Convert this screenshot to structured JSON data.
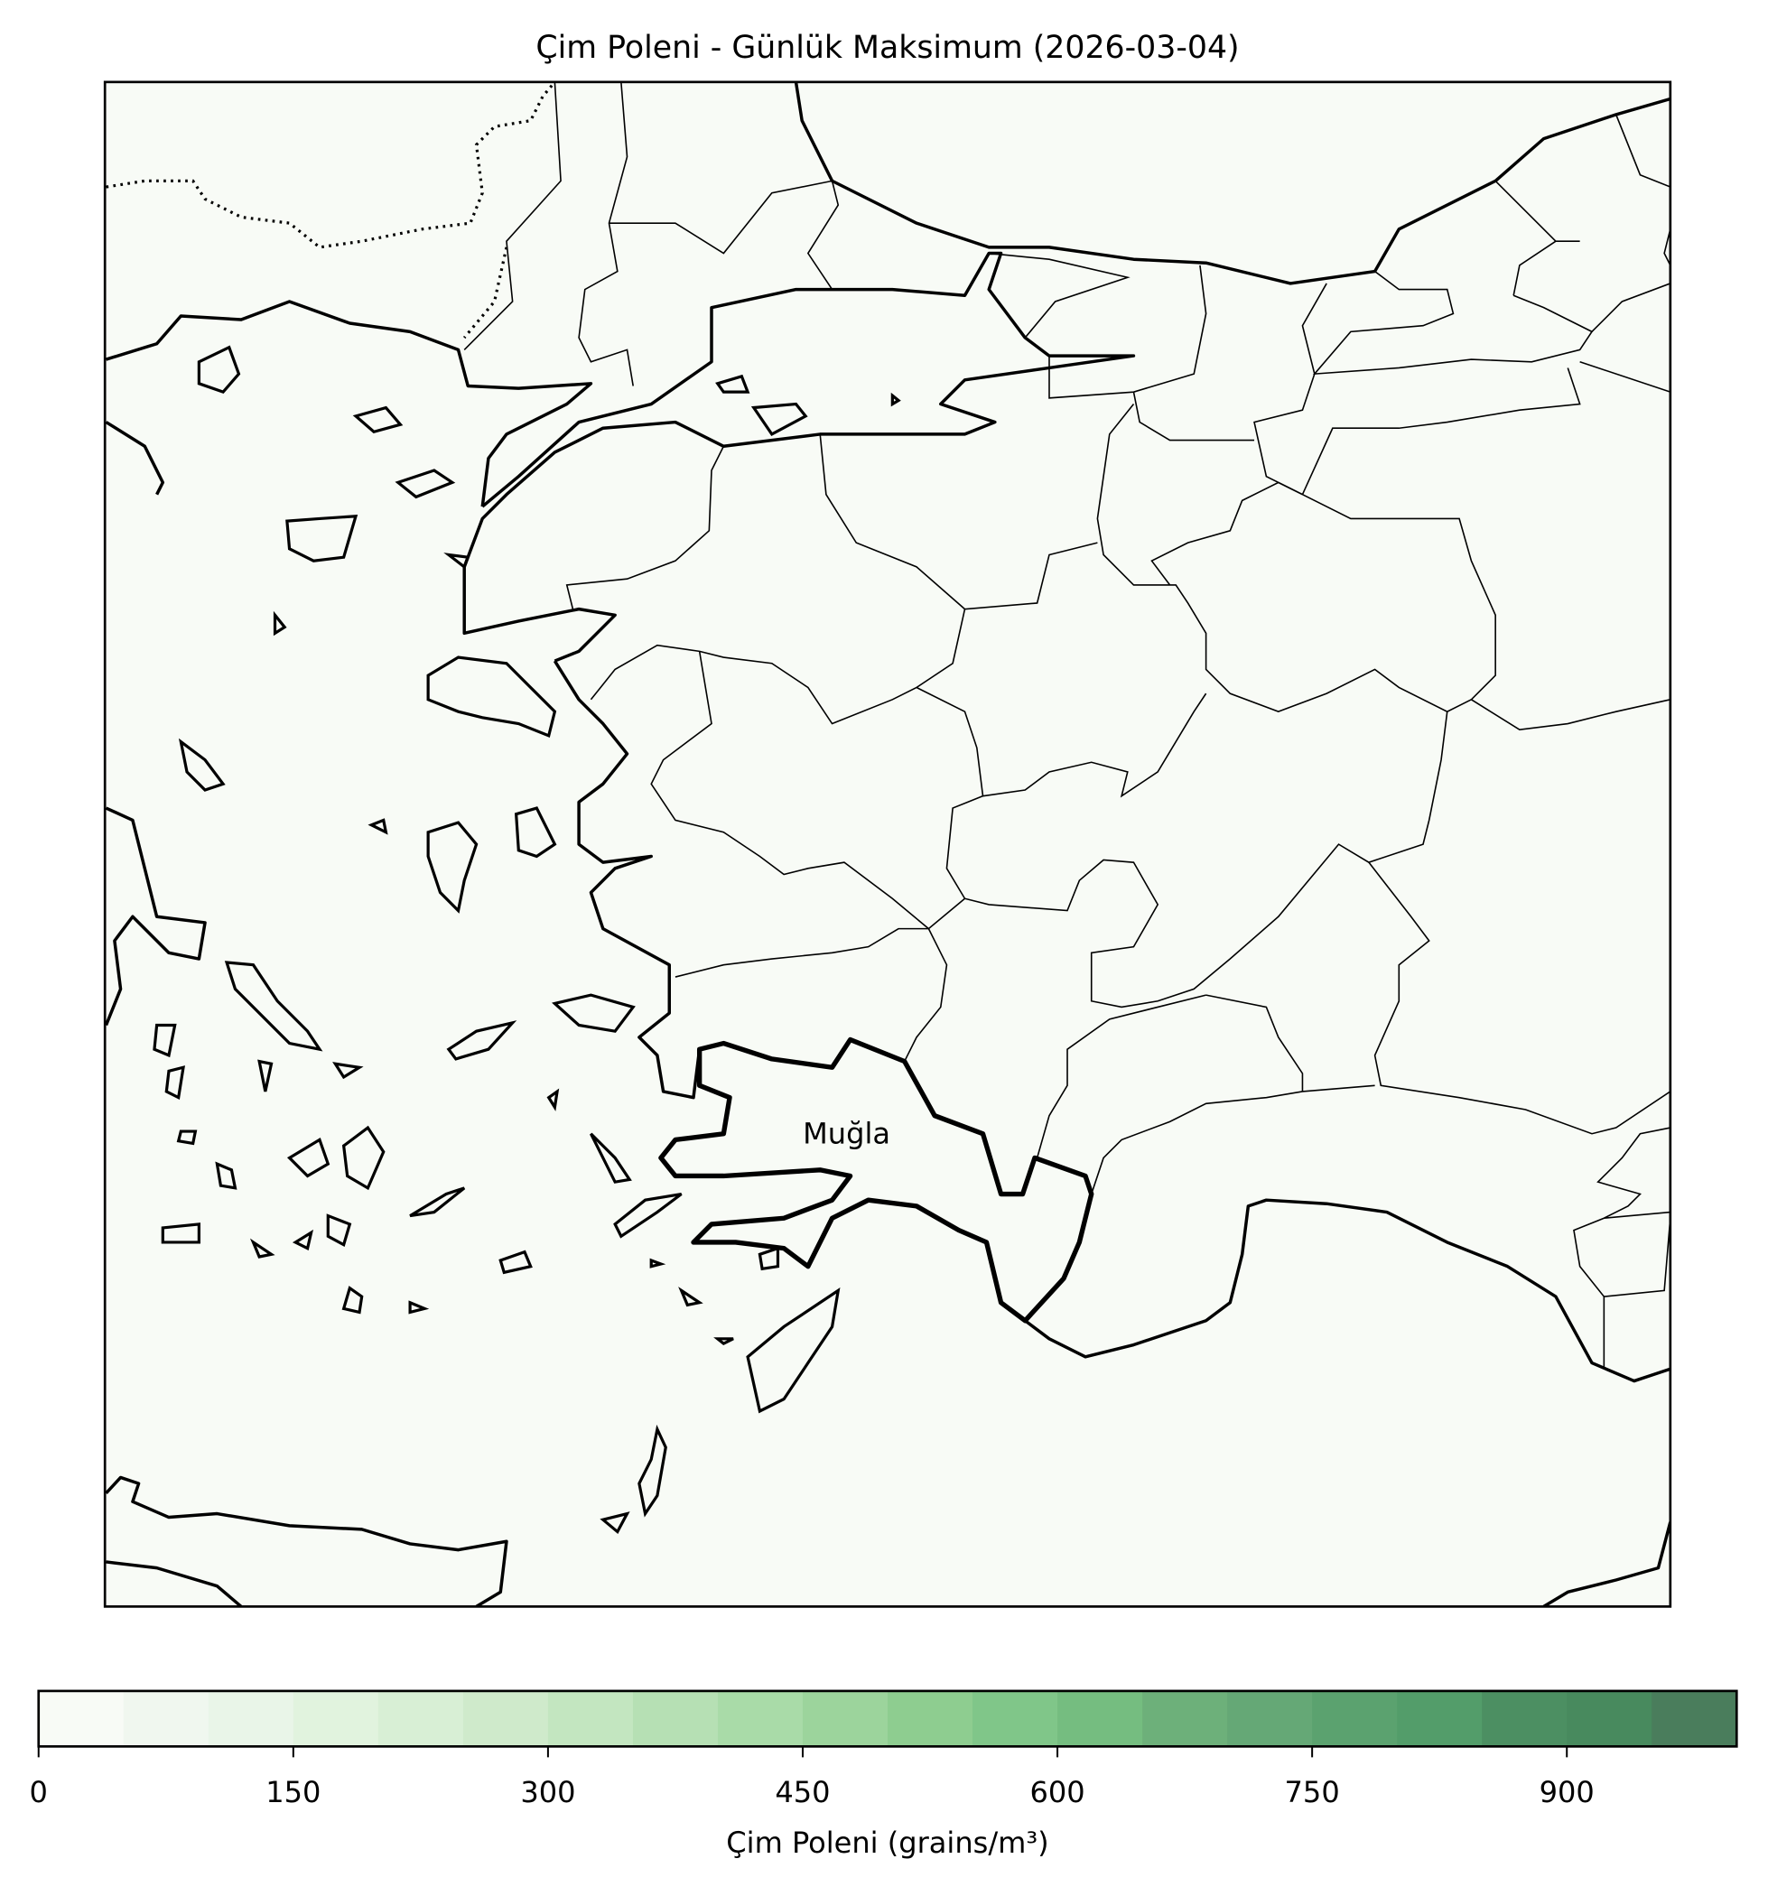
{
  "chart_data": {
    "type": "heatmap",
    "title": "Çim Poleni - Günlük Maksimum (2026-03-04)",
    "highlighted_region": "Muğla",
    "field_value_everywhere": 0,
    "colorbar": {
      "label": "Çim Poleni (grains/m³)",
      "range": [
        0,
        1000
      ],
      "orientation": "horizontal",
      "placement": "bottom",
      "ticks": [
        0,
        150,
        300,
        450,
        600,
        750,
        900
      ],
      "tick_labels": [
        "0",
        "150",
        "300",
        "450",
        "600",
        "750",
        "900"
      ],
      "bin_edges": [
        0,
        50,
        100,
        150,
        200,
        250,
        300,
        350,
        400,
        450,
        500,
        550,
        600,
        650,
        700,
        750,
        800,
        850,
        900,
        950,
        1000
      ],
      "colors": [
        "#f8fbf6",
        "#f0f7ef",
        "#e9f5e8",
        "#e1f3de",
        "#d8efd5",
        "#cfeacb",
        "#c3e6c0",
        "#b6e0b4",
        "#a9dba8",
        "#9cd49c",
        "#8ecd90",
        "#80c689",
        "#75bd80",
        "#6db07a",
        "#65a876",
        "#5ba26f",
        "#539d6a",
        "#4c8f62",
        "#488a5e",
        "#4a7d5c"
      ],
      "background_color": "#f8fbf6"
    }
  }
}
